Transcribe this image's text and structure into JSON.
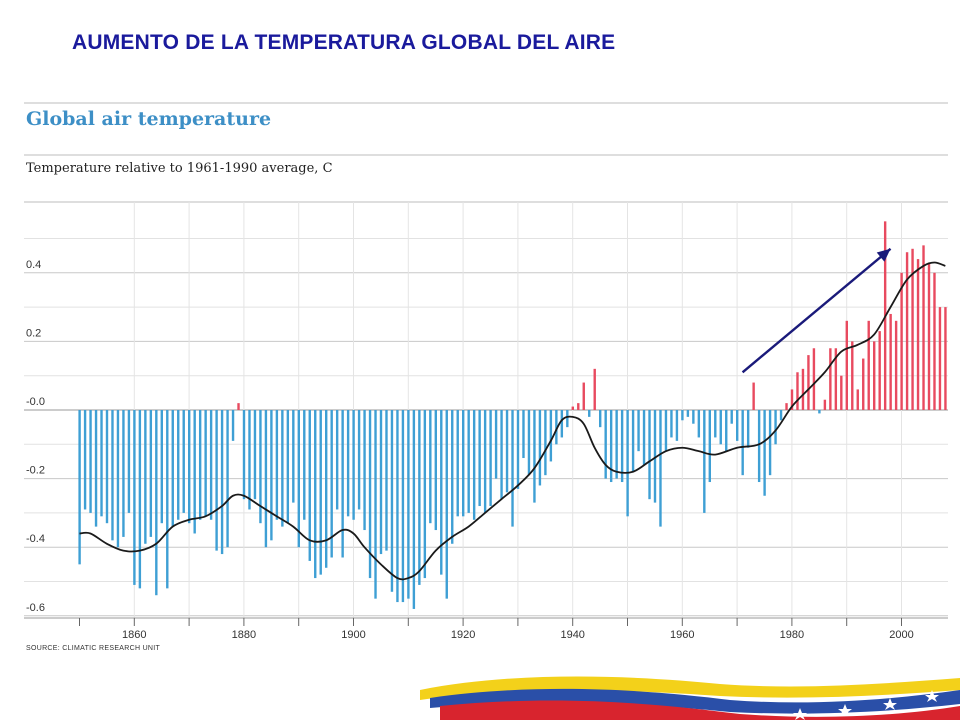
{
  "slide": {
    "title": "AUMENTO DE LA TEMPERATURA GLOBAL DEL AIRE"
  },
  "colors": {
    "title": "#1a1a9c",
    "chart_title": "#3d8fc6",
    "negative_bar": "#3e9fd4",
    "positive_bar": "#e84a5f",
    "trend_line": "#1a1a1a",
    "arrow": "#1a1a7a"
  },
  "chart_data": {
    "type": "bar",
    "title": "Global air temperature",
    "subtitle": "Temperature relative to 1961-1990 average,  C",
    "source": "SOURCE: CLIMATIC RESEARCH UNIT",
    "xlabel": "",
    "ylabel": "",
    "xlim": [
      1850,
      2008
    ],
    "ylim": [
      -0.6,
      0.6
    ],
    "x_ticks": [
      1860,
      1880,
      1900,
      1920,
      1940,
      1960,
      1980,
      2000
    ],
    "y_ticks": [
      {
        "value": 0.4,
        "label": "0.4"
      },
      {
        "value": 0.2,
        "label": "0.2"
      },
      {
        "value": 0.0,
        "label": "-0.0"
      },
      {
        "value": -0.2,
        "label": "-0.2"
      },
      {
        "value": -0.4,
        "label": "-0.4"
      },
      {
        "value": -0.6,
        "label": "-0.6"
      }
    ],
    "grid": true,
    "years": [
      1850,
      1851,
      1852,
      1853,
      1854,
      1855,
      1856,
      1857,
      1858,
      1859,
      1860,
      1861,
      1862,
      1863,
      1864,
      1865,
      1866,
      1867,
      1868,
      1869,
      1870,
      1871,
      1872,
      1873,
      1874,
      1875,
      1876,
      1877,
      1878,
      1879,
      1880,
      1881,
      1882,
      1883,
      1884,
      1885,
      1886,
      1887,
      1888,
      1889,
      1890,
      1891,
      1892,
      1893,
      1894,
      1895,
      1896,
      1897,
      1898,
      1899,
      1900,
      1901,
      1902,
      1903,
      1904,
      1905,
      1906,
      1907,
      1908,
      1909,
      1910,
      1911,
      1912,
      1913,
      1914,
      1915,
      1916,
      1917,
      1918,
      1919,
      1920,
      1921,
      1922,
      1923,
      1924,
      1925,
      1926,
      1927,
      1928,
      1929,
      1930,
      1931,
      1932,
      1933,
      1934,
      1935,
      1936,
      1937,
      1938,
      1939,
      1940,
      1941,
      1942,
      1943,
      1944,
      1945,
      1946,
      1947,
      1948,
      1949,
      1950,
      1951,
      1952,
      1953,
      1954,
      1955,
      1956,
      1957,
      1958,
      1959,
      1960,
      1961,
      1962,
      1963,
      1964,
      1965,
      1966,
      1967,
      1968,
      1969,
      1970,
      1971,
      1972,
      1973,
      1974,
      1975,
      1976,
      1977,
      1978,
      1979,
      1980,
      1981,
      1982,
      1983,
      1984,
      1985,
      1986,
      1987,
      1988,
      1989,
      1990,
      1991,
      1992,
      1993,
      1994,
      1995,
      1996,
      1997,
      1998,
      1999,
      2000,
      2001,
      2002,
      2003,
      2004,
      2005,
      2006,
      2007,
      2008
    ],
    "values": [
      -0.45,
      -0.29,
      -0.3,
      -0.34,
      -0.31,
      -0.33,
      -0.38,
      -0.4,
      -0.37,
      -0.3,
      -0.51,
      -0.52,
      -0.39,
      -0.37,
      -0.54,
      -0.33,
      -0.52,
      -0.34,
      -0.32,
      -0.3,
      -0.33,
      -0.36,
      -0.32,
      -0.31,
      -0.32,
      -0.41,
      -0.42,
      -0.4,
      -0.09,
      0.02,
      -0.26,
      -0.29,
      -0.26,
      -0.33,
      -0.4,
      -0.38,
      -0.32,
      -0.34,
      -0.33,
      -0.27,
      -0.4,
      -0.32,
      -0.44,
      -0.49,
      -0.48,
      -0.46,
      -0.43,
      -0.29,
      -0.43,
      -0.31,
      -0.32,
      -0.29,
      -0.35,
      -0.49,
      -0.55,
      -0.42,
      -0.41,
      -0.53,
      -0.56,
      -0.56,
      -0.55,
      -0.58,
      -0.51,
      -0.49,
      -0.33,
      -0.35,
      -0.48,
      -0.55,
      -0.39,
      -0.31,
      -0.31,
      -0.3,
      -0.32,
      -0.28,
      -0.3,
      -0.28,
      -0.2,
      -0.26,
      -0.24,
      -0.34,
      -0.23,
      -0.14,
      -0.19,
      -0.27,
      -0.22,
      -0.19,
      -0.15,
      -0.1,
      -0.08,
      -0.05,
      0.01,
      0.02,
      0.08,
      -0.02,
      0.12,
      -0.05,
      -0.2,
      -0.21,
      -0.2,
      -0.21,
      -0.31,
      -0.18,
      -0.12,
      -0.16,
      -0.26,
      -0.27,
      -0.34,
      -0.12,
      -0.08,
      -0.09,
      -0.03,
      -0.02,
      -0.04,
      -0.08,
      -0.3,
      -0.21,
      -0.08,
      -0.1,
      -0.12,
      -0.04,
      -0.09,
      -0.19,
      -0.11,
      0.08,
      -0.21,
      -0.25,
      -0.19,
      -0.1,
      -0.03,
      0.02,
      0.06,
      0.11,
      0.12,
      0.16,
      0.18,
      -0.01,
      0.03,
      0.18,
      0.18,
      0.1,
      0.26,
      0.2,
      0.06,
      0.15,
      0.26,
      0.2,
      0.23,
      0.55,
      0.28,
      0.26,
      0.4,
      0.46,
      0.47,
      0.44,
      0.48,
      0.43,
      0.4,
      0.3,
      0.3
    ],
    "trend": [
      [
        1850,
        -0.36
      ],
      [
        1852,
        -0.36
      ],
      [
        1855,
        -0.39
      ],
      [
        1858,
        -0.41
      ],
      [
        1861,
        -0.41
      ],
      [
        1864,
        -0.39
      ],
      [
        1867,
        -0.34
      ],
      [
        1870,
        -0.32
      ],
      [
        1873,
        -0.31
      ],
      [
        1876,
        -0.28
      ],
      [
        1878,
        -0.25
      ],
      [
        1880,
        -0.25
      ],
      [
        1883,
        -0.28
      ],
      [
        1886,
        -0.31
      ],
      [
        1889,
        -0.34
      ],
      [
        1892,
        -0.38
      ],
      [
        1895,
        -0.38
      ],
      [
        1898,
        -0.35
      ],
      [
        1900,
        -0.36
      ],
      [
        1902,
        -0.4
      ],
      [
        1905,
        -0.45
      ],
      [
        1908,
        -0.49
      ],
      [
        1910,
        -0.49
      ],
      [
        1912,
        -0.47
      ],
      [
        1915,
        -0.41
      ],
      [
        1918,
        -0.37
      ],
      [
        1921,
        -0.34
      ],
      [
        1924,
        -0.3
      ],
      [
        1927,
        -0.26
      ],
      [
        1930,
        -0.22
      ],
      [
        1933,
        -0.17
      ],
      [
        1936,
        -0.09
      ],
      [
        1938,
        -0.03
      ],
      [
        1940,
        -0.02
      ],
      [
        1942,
        -0.04
      ],
      [
        1944,
        -0.11
      ],
      [
        1946,
        -0.16
      ],
      [
        1948,
        -0.18
      ],
      [
        1951,
        -0.18
      ],
      [
        1954,
        -0.15
      ],
      [
        1957,
        -0.12
      ],
      [
        1960,
        -0.11
      ],
      [
        1963,
        -0.12
      ],
      [
        1966,
        -0.13
      ],
      [
        1970,
        -0.11
      ],
      [
        1974,
        -0.1
      ],
      [
        1977,
        -0.06
      ],
      [
        1980,
        0.01
      ],
      [
        1983,
        0.06
      ],
      [
        1986,
        0.11
      ],
      [
        1989,
        0.17
      ],
      [
        1992,
        0.19
      ],
      [
        1995,
        0.22
      ],
      [
        1998,
        0.3
      ],
      [
        2001,
        0.38
      ],
      [
        2004,
        0.42
      ],
      [
        2006,
        0.43
      ],
      [
        2008,
        0.42
      ]
    ],
    "annotations": [
      {
        "type": "arrow",
        "from": [
          1971,
          0.11
        ],
        "to": [
          1998,
          0.47
        ]
      }
    ]
  }
}
